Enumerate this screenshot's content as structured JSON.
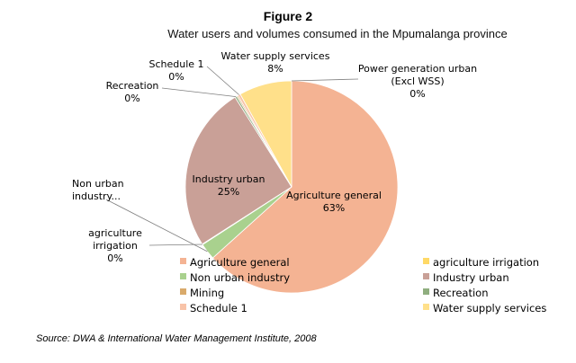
{
  "figure": {
    "title": "Figure 2",
    "subtitle": "Water users and volumes consumed in the Mpumalanga province",
    "source": "Source: DWA & International Water Management Institute, 2008"
  },
  "chart_data": {
    "type": "pie",
    "title": "Water users and volumes consumed in the Mpumalanga province",
    "slices": [
      {
        "name": "Power generation urban (Excl WSS)",
        "value": 0,
        "label_lines": [
          "Power generation urban",
          "(Excl WSS)"
        ],
        "pct_label": "0%",
        "color": "#9dc3e6"
      },
      {
        "name": "Agriculture general",
        "value": 63,
        "label_lines": [
          "Agriculture general"
        ],
        "pct_label": "63%",
        "color": "#f4b393"
      },
      {
        "name": "Non urban industry",
        "value": 2.5,
        "label_lines": [
          "Non urban",
          "industry..."
        ],
        "pct_label": "",
        "color": "#a9d18e"
      },
      {
        "name": "agriculture irrigation",
        "value": 0.1,
        "label_lines": [
          "agriculture",
          "irrigation"
        ],
        "pct_label": "0%",
        "color": "#ffd966"
      },
      {
        "name": "Industry urban",
        "value": 25,
        "label_lines": [
          "Industry urban"
        ],
        "pct_label": "25%",
        "color": "#c9a097"
      },
      {
        "name": "Recreation",
        "value": 0.3,
        "label_lines": [
          "Recreation"
        ],
        "pct_label": "0%",
        "color": "#8fae7f"
      },
      {
        "name": "Mining",
        "value": 0.2,
        "label_lines": [],
        "pct_label": "",
        "color": "#d9aa6b"
      },
      {
        "name": "Schedule 1",
        "value": 0.4,
        "label_lines": [
          "Schedule 1"
        ],
        "pct_label": "0%",
        "color": "#f8c3a8"
      },
      {
        "name": "Water supply services",
        "value": 8,
        "label_lines": [
          "Water supply services"
        ],
        "pct_label": "8%",
        "color": "#ffe08a"
      }
    ],
    "legend": {
      "placement": "bottom-right",
      "entries": [
        {
          "label": "Agriculture general",
          "color": "#f4b393"
        },
        {
          "label": "Non urban industry",
          "color": "#a9d18e"
        },
        {
          "label": "Mining",
          "color": "#d9aa6b"
        },
        {
          "label": "Schedule 1",
          "color": "#f8c3a8"
        },
        {
          "label": "agriculture irrigation",
          "color": "#ffd966"
        },
        {
          "label": "Industry urban",
          "color": "#c9a097"
        },
        {
          "label": "Recreation",
          "color": "#8fae7f"
        },
        {
          "label": "Water supply services",
          "color": "#ffe08a"
        }
      ]
    }
  }
}
